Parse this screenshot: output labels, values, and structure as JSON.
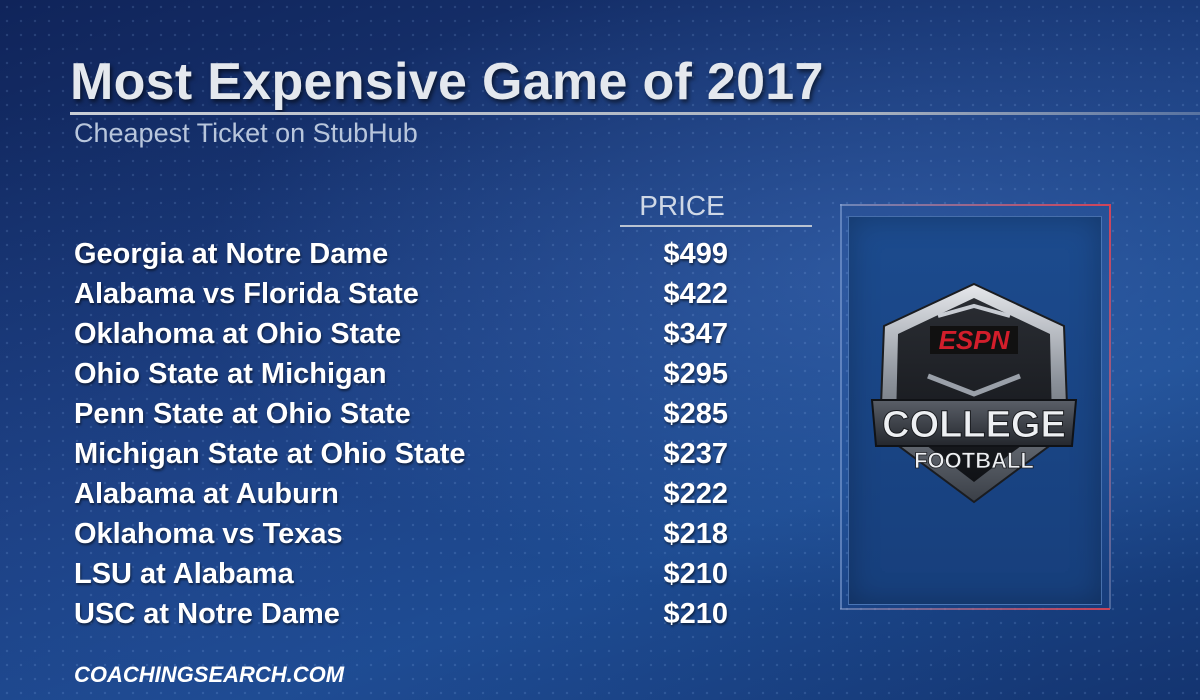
{
  "title": "Most Expensive Game of 2017",
  "subtitle": "Cheapest Ticket on StubHub",
  "price_header": "PRICE",
  "games": [
    {
      "name": "Georgia at Notre Dame",
      "price": "$499"
    },
    {
      "name": "Alabama vs Florida State",
      "price": "$422"
    },
    {
      "name": "Oklahoma at Ohio State",
      "price": "$347"
    },
    {
      "name": "Ohio State at Michigan",
      "price": "$295"
    },
    {
      "name": "Penn State at Ohio State",
      "price": "$285"
    },
    {
      "name": "Michigan State at Ohio State",
      "price": "$237"
    },
    {
      "name": "Alabama at Auburn",
      "price": "$222"
    },
    {
      "name": "Oklahoma vs Texas",
      "price": "$218"
    },
    {
      "name": "LSU at Alabama",
      "price": "$210"
    },
    {
      "name": "USC at Notre Dame",
      "price": "$210"
    }
  ],
  "footer": "COACHINGSEARCH.COM",
  "logo": {
    "brand": "ESPN",
    "line1": "COLLEGE",
    "line2": "FOOTBALL"
  },
  "colors": {
    "background": "#1a3c7c",
    "text": "#ffffff",
    "accent_red": "#d0445a",
    "espn_red": "#d21e2b"
  }
}
